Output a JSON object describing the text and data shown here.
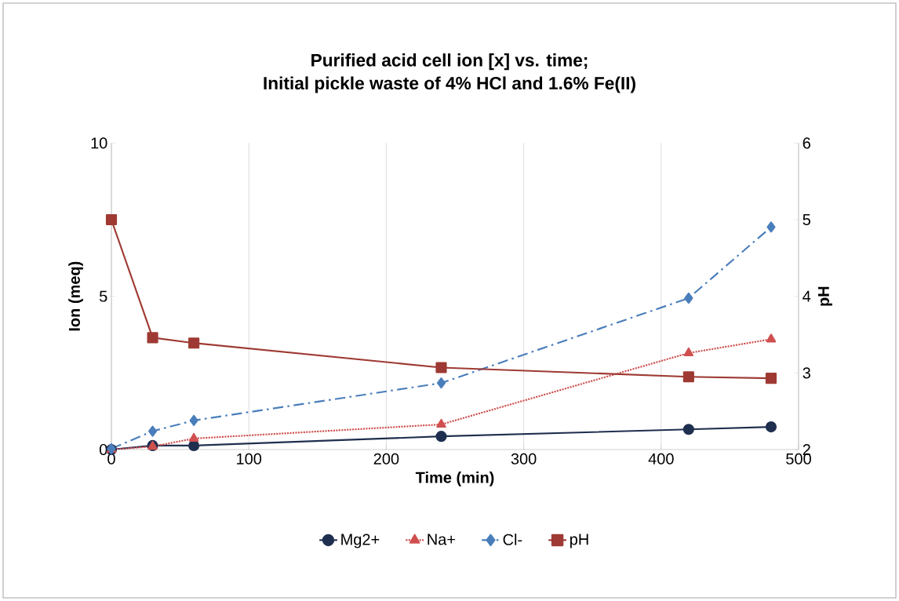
{
  "chart_data": {
    "type": "line",
    "title": "Purified acid cell ion [x] vs. time;",
    "subtitle": "Initial pickle waste of 4% HCl and 1.6% Fe(II)",
    "xlabel": "Time (min)",
    "ylabel": "Ion (meq)",
    "y2label": "pH",
    "x": [
      0,
      30,
      60,
      240,
      420,
      480
    ],
    "series": [
      {
        "name": "Mg2+",
        "color": "#1f2f4f",
        "marker": "circle",
        "line_style": "solid",
        "values": [
          0,
          0.13,
          0.13,
          0.43,
          0.66,
          0.74
        ]
      },
      {
        "name": "Na+",
        "color": "#d05050",
        "marker": "triangle",
        "line_style": "dotted",
        "values": [
          0,
          0.1,
          0.36,
          0.82,
          3.15,
          3.6
        ]
      },
      {
        "name": "Cl-",
        "color": "#4a7ebb",
        "marker": "diamond",
        "line_style": "dashed",
        "values": [
          0.03,
          0.6,
          0.95,
          2.17,
          4.94,
          7.26
        ]
      },
      {
        "name": "pH",
        "color": "#9e3a33",
        "marker": "square",
        "line_style": "solid",
        "axis": "y2",
        "values": [
          5.0,
          3.46,
          3.39,
          3.07,
          2.95,
          2.93
        ]
      }
    ],
    "xlim": [
      0,
      500
    ],
    "xticks": [
      0,
      100,
      200,
      300,
      400,
      500
    ],
    "ylim": [
      0,
      10
    ],
    "yticks": [
      0,
      5,
      10
    ],
    "y2lim": [
      2,
      6
    ],
    "y2ticks": [
      2,
      3,
      4,
      5,
      6
    ],
    "grid": "x",
    "legend": "bottom"
  }
}
